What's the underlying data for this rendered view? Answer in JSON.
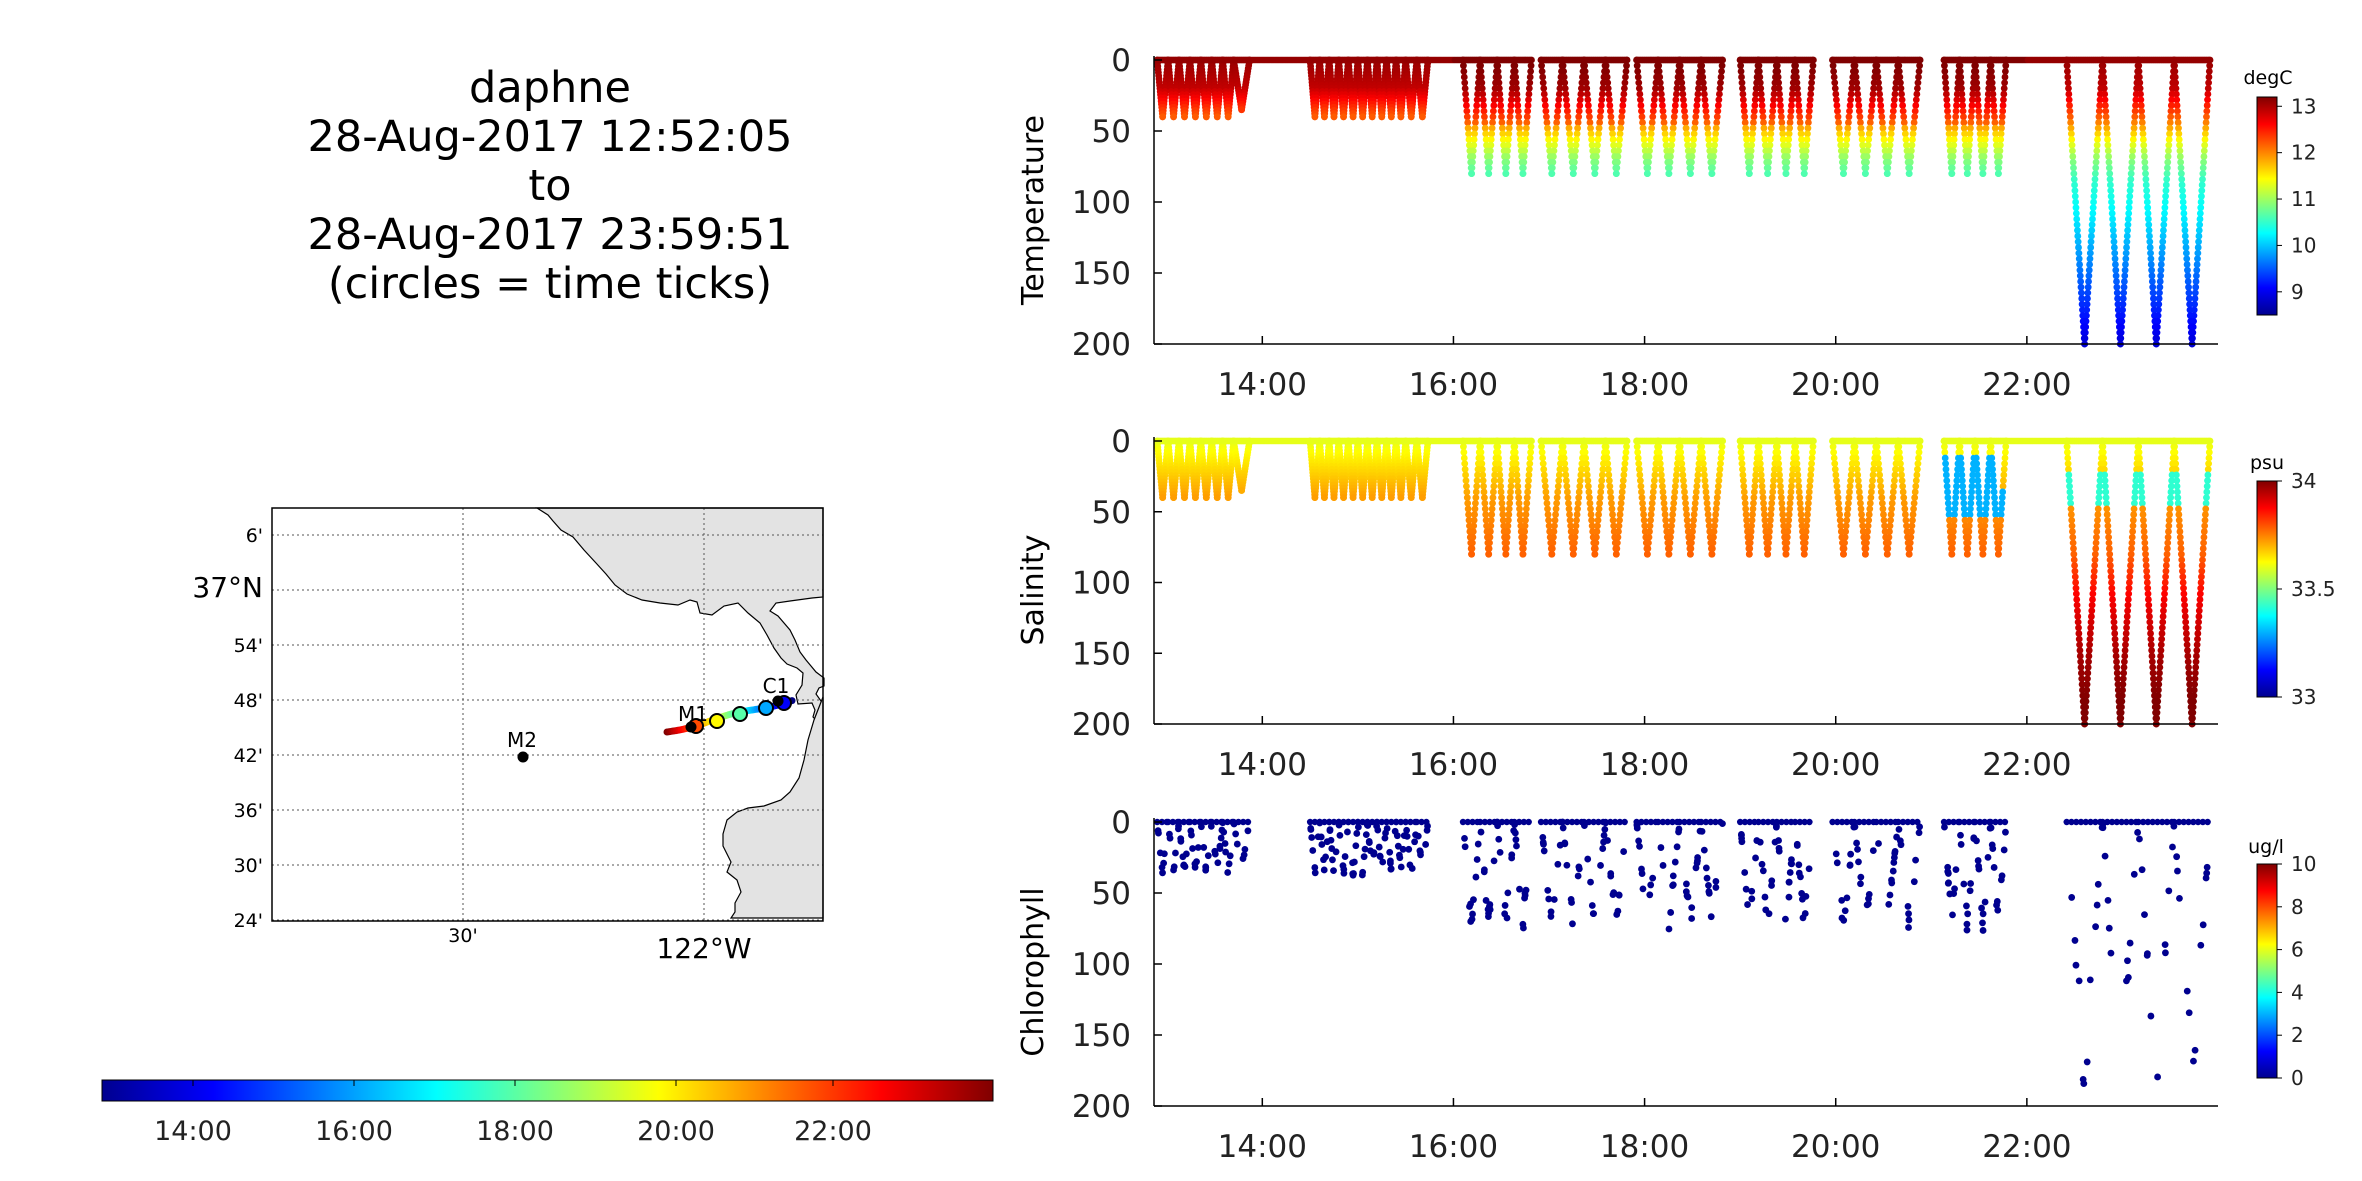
{
  "title": {
    "vehicle": "daphne",
    "start": "28-Aug-2017 12:52:05",
    "to": "to",
    "end": "28-Aug-2017 23:59:51",
    "note": "(circles = time ticks)"
  },
  "colors": {
    "land": "#e3e3e3",
    "marker": "#000000"
  },
  "map": {
    "lat_labels": [
      "6'",
      "37°N",
      "54'",
      "48'",
      "42'",
      "36'",
      "30'",
      "24'"
    ],
    "lon_labels": [
      "30'",
      "122°W"
    ],
    "moorings": [
      "M1",
      "M2",
      "C1"
    ],
    "track_colors": [
      "#b30000",
      "#ff2a00",
      "#ff8c00",
      "#ffd200",
      "#b4ff46",
      "#33ffcc",
      "#00a6ff",
      "#0022ff",
      "#000080"
    ]
  },
  "time_colorbar": {
    "tick_labels": [
      "14:00",
      "16:00",
      "18:00",
      "20:00",
      "22:00"
    ]
  },
  "chart_data": [
    {
      "type": "scatter",
      "ylabel": "Temperature",
      "units": "degC",
      "x_ticks": [
        "14:00",
        "16:00",
        "18:00",
        "20:00",
        "22:00"
      ],
      "xlim": [
        "12:52",
        "24:00"
      ],
      "y_ticks": [
        0,
        50,
        100,
        150,
        200
      ],
      "ylim": [
        200,
        0
      ],
      "y_reversed": true,
      "colorbar": {
        "ticks": [
          9,
          10,
          11,
          12,
          13
        ],
        "range": [
          8.5,
          13.2
        ]
      },
      "profiles": [
        {
          "start": "12:54",
          "end": "13:42",
          "max_depth": 40,
          "n": 7
        },
        {
          "start": "13:42",
          "end": "13:52",
          "max_depth": 35,
          "n": 1
        },
        {
          "start": "14:30",
          "end": "15:00",
          "max_depth": 40,
          "n": 5
        },
        {
          "start": "15:00",
          "end": "15:30",
          "max_depth": 40,
          "n": 5
        },
        {
          "start": "15:30",
          "end": "15:44",
          "max_depth": 40,
          "n": 2
        },
        {
          "start": "16:06",
          "end": "16:49",
          "max_depth": 80,
          "n": 4
        },
        {
          "start": "16:55",
          "end": "17:49",
          "max_depth": 80,
          "n": 4
        },
        {
          "start": "17:55",
          "end": "18:49",
          "max_depth": 80,
          "n": 4
        },
        {
          "start": "19:00",
          "end": "19:46",
          "max_depth": 80,
          "n": 4
        },
        {
          "start": "19:58",
          "end": "20:53",
          "max_depth": 80,
          "n": 4
        },
        {
          "start": "21:08",
          "end": "21:47",
          "max_depth": 80,
          "n": 4
        },
        {
          "start": "22:25",
          "end": "23:55",
          "max_depth": 200,
          "n": 4
        }
      ],
      "cross_section": "stratified: ~13 degC at surface, ~11.5 degC at 50 m, ~10.5 degC at 80 m, ~9 degC at 200 m"
    },
    {
      "type": "scatter",
      "ylabel": "Salinity",
      "units": "psu",
      "x_ticks": [
        "14:00",
        "16:00",
        "18:00",
        "20:00",
        "22:00"
      ],
      "xlim": [
        "12:52",
        "24:00"
      ],
      "y_ticks": [
        0,
        50,
        100,
        150,
        200
      ],
      "ylim": [
        200,
        0
      ],
      "y_reversed": true,
      "colorbar": {
        "ticks": [
          33,
          33.5,
          34
        ],
        "range": [
          33,
          34
        ]
      },
      "cross_section": "~33.5 psu near surface increasing to ~34 psu at 200 m; fresher (~33.3 psu) lens near 20-50 m around 21:00-21:40"
    },
    {
      "type": "scatter",
      "ylabel": "Chlorophyll",
      "units": "ug/l",
      "x_ticks": [
        "14:00",
        "16:00",
        "18:00",
        "20:00",
        "22:00"
      ],
      "xlim": [
        "12:52",
        "24:00"
      ],
      "y_ticks": [
        0,
        50,
        100,
        150,
        200
      ],
      "ylim": [
        200,
        0
      ],
      "y_reversed": true,
      "colorbar": {
        "ticks": [
          0,
          2,
          4,
          6,
          8,
          10
        ],
        "range": [
          0,
          10
        ]
      },
      "cross_section": "sparse samples, all near 0 ug/l"
    }
  ]
}
